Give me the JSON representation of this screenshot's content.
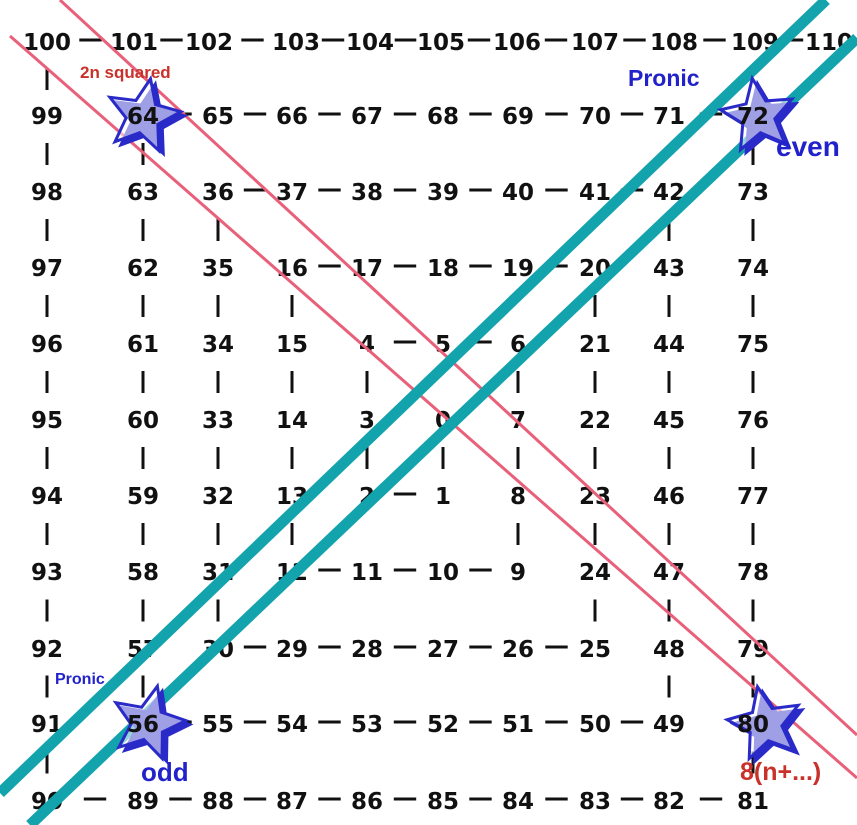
{
  "spiral": {
    "rows": [
      [
        "100",
        "101",
        "102",
        "103",
        "104",
        "105",
        "106",
        "107",
        "108",
        "109",
        "110"
      ],
      [
        "99",
        "64",
        "65",
        "66",
        "67",
        "68",
        "69",
        "70",
        "71",
        "72"
      ],
      [
        "98",
        "63",
        "36",
        "37",
        "38",
        "39",
        "40",
        "41",
        "42",
        "73"
      ],
      [
        "97",
        "62",
        "35",
        "16",
        "17",
        "18",
        "19",
        "20",
        "43",
        "74"
      ],
      [
        "96",
        "61",
        "34",
        "15",
        "4",
        "5",
        "6",
        "21",
        "44",
        "75"
      ],
      [
        "95",
        "60",
        "33",
        "14",
        "3",
        "0",
        "7",
        "22",
        "45",
        "76"
      ],
      [
        "94",
        "59",
        "32",
        "13",
        "2",
        "1",
        "8",
        "23",
        "46",
        "77"
      ],
      [
        "93",
        "58",
        "31",
        "12",
        "11",
        "10",
        "9",
        "24",
        "47",
        "78"
      ],
      [
        "92",
        "57",
        "30",
        "29",
        "28",
        "27",
        "26",
        "25",
        "48",
        "79"
      ],
      [
        "91",
        "56",
        "55",
        "54",
        "53",
        "52",
        "51",
        "50",
        "49",
        "80"
      ],
      [
        "90",
        "89",
        "88",
        "87",
        "86",
        "85",
        "84",
        "83",
        "82",
        "81"
      ]
    ]
  },
  "annotations": {
    "two_n_squared": "2n squared",
    "pronic_top": "Pronic",
    "even": "even",
    "pronic_bottom": "Pronic",
    "odd": "odd",
    "eight_n": "8(n+...)"
  },
  "colors": {
    "teal_line": "#13a3ad",
    "pink_line": "#e8607a",
    "star": "#2a2ac8",
    "red_text": "#c8322a",
    "blue_text": "#2222cc",
    "number": "#111111"
  }
}
